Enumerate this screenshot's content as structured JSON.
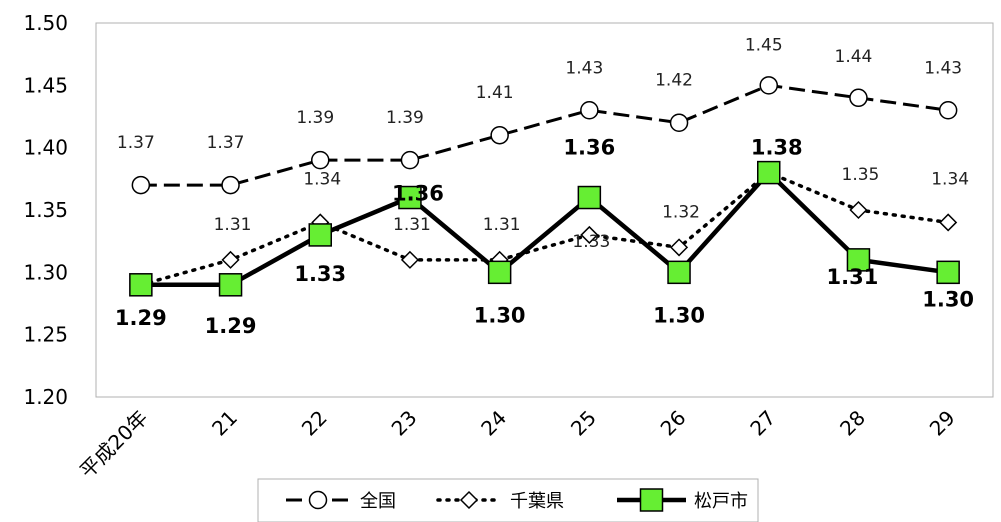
{
  "chart_data": {
    "type": "line",
    "categories": [
      "平成20年",
      "21",
      "22",
      "23",
      "24",
      "25",
      "26",
      "27",
      "28",
      "29"
    ],
    "ylim": [
      1.2,
      1.5
    ],
    "yticks": [
      "1.20",
      "1.25",
      "1.30",
      "1.35",
      "1.40",
      "1.45",
      "1.50"
    ],
    "grid": false,
    "legend_position": "bottom",
    "series": [
      {
        "name": "全国",
        "values": [
          1.37,
          1.37,
          1.39,
          1.39,
          1.41,
          1.43,
          1.42,
          1.45,
          1.44,
          1.43
        ],
        "labels": [
          "1.37",
          "1.37",
          "1.39",
          "1.39",
          "1.41",
          "1.43",
          "1.42",
          "1.45",
          "1.44",
          "1.43"
        ],
        "line": "dashed",
        "marker": "circle",
        "marker_color": "#ffffff"
      },
      {
        "name": "千葉県",
        "values": [
          1.29,
          1.31,
          1.34,
          1.31,
          1.31,
          1.33,
          1.32,
          1.38,
          1.35,
          1.34
        ],
        "labels": [
          "1.29",
          "1.31",
          "1.34",
          "1.31",
          "1.31",
          "1.33",
          "1.32",
          "1.38",
          "1.35",
          "1.34"
        ],
        "line": "dotted",
        "marker": "diamond",
        "marker_color": "#ffffff"
      },
      {
        "name": "松戸市",
        "values": [
          1.29,
          1.29,
          1.33,
          1.36,
          1.3,
          1.36,
          1.3,
          1.38,
          1.31,
          1.3
        ],
        "labels": [
          "1.29",
          "1.29",
          "1.33",
          "1.36",
          "1.30",
          "1.36",
          "1.30",
          "1.38",
          "1.31",
          "1.30"
        ],
        "line": "solid",
        "marker": "square",
        "marker_color": "#66ee33"
      }
    ]
  }
}
